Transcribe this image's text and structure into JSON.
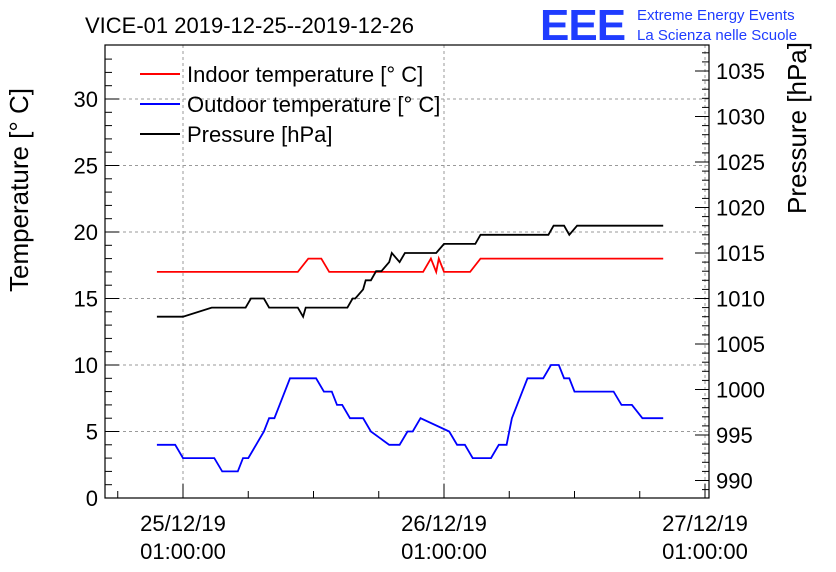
{
  "logo": {
    "mark": "EEE",
    "line1": "Extreme Energy Events",
    "line2": "La Scienza nelle Scuole"
  },
  "chart_data": {
    "type": "line",
    "title": "VICE-01 2019-12-25--2019-12-26",
    "ylabel": "Temperature [° C]",
    "y2label": "Pressure [hPa]",
    "ylim": [
      0,
      34
    ],
    "y2lim": [
      989,
      1037
    ],
    "xlim": [
      -0.26,
      2.0
    ],
    "x_unit": "days after 25/12/19 01:00:00",
    "x_ticks": [
      {
        "x": 0,
        "label": [
          "25/12/19",
          "01:00:00"
        ]
      },
      {
        "x": 1,
        "label": [
          "26/12/19",
          "01:00:00"
        ]
      },
      {
        "x": 2,
        "label": [
          "27/12/19",
          "01:00:00"
        ]
      }
    ],
    "y_ticks": [
      0,
      5,
      10,
      15,
      20,
      25,
      30
    ],
    "y2_ticks": [
      990,
      995,
      1000,
      1005,
      1010,
      1015,
      1020,
      1025,
      1030,
      1035
    ],
    "grid": true,
    "legend_position": "top-left",
    "colors": {
      "indoor": "#ff0000",
      "outdoor": "#0000ff",
      "pressure": "#000000",
      "grid": "#9a9a9a"
    },
    "series": [
      {
        "name": "Indoor temperature [° C]",
        "axis": "left",
        "color": "#ff0000",
        "x": [
          -0.1,
          0.44,
          0.48,
          0.53,
          0.56,
          0.69,
          0.72,
          0.86,
          0.92,
          0.95,
          0.97,
          0.98,
          1.0,
          1.03,
          1.1,
          1.14,
          1.84
        ],
        "y": [
          17,
          17,
          18,
          18,
          17,
          17,
          17,
          17,
          17,
          18,
          17,
          18,
          17,
          17,
          17,
          18,
          18
        ]
      },
      {
        "name": "Outdoor temperature [° C]",
        "axis": "left",
        "color": "#0000ff",
        "x": [
          -0.1,
          -0.03,
          0.0,
          0.12,
          0.15,
          0.21,
          0.23,
          0.25,
          0.28,
          0.31,
          0.33,
          0.35,
          0.37,
          0.41,
          0.44,
          0.51,
          0.54,
          0.57,
          0.59,
          0.61,
          0.64,
          0.69,
          0.72,
          0.79,
          0.83,
          0.86,
          0.88,
          0.91,
          1.02,
          1.05,
          1.08,
          1.11,
          1.13,
          1.18,
          1.21,
          1.24,
          1.26,
          1.28,
          1.3,
          1.32,
          1.35,
          1.38,
          1.41,
          1.44,
          1.46,
          1.48,
          1.5,
          1.57,
          1.6,
          1.65,
          1.68,
          1.72,
          1.76,
          1.84
        ],
        "y": [
          4,
          4,
          3,
          3,
          2,
          2,
          3,
          3,
          4,
          5,
          6,
          6,
          7,
          9,
          9,
          9,
          8,
          8,
          7,
          7,
          6,
          6,
          5,
          4,
          4,
          5,
          5,
          6,
          5,
          4,
          4,
          3,
          3,
          3,
          4,
          4,
          6,
          7,
          8,
          9,
          9,
          9,
          10,
          10,
          9,
          9,
          8,
          8,
          8,
          8,
          7,
          7,
          6,
          6
        ]
      },
      {
        "name": "Pressure [hPa]",
        "axis": "right",
        "color": "#000000",
        "x": [
          -0.1,
          -0.01,
          0.0,
          0.11,
          0.24,
          0.26,
          0.31,
          0.33,
          0.44,
          0.46,
          0.47,
          0.52,
          0.63,
          0.65,
          0.66,
          0.69,
          0.7,
          0.72,
          0.74,
          0.76,
          0.79,
          0.8,
          0.83,
          0.85,
          0.88,
          0.91,
          0.94,
          0.97,
          1.0,
          1.03,
          1.05,
          1.08,
          1.1,
          1.12,
          1.14,
          1.18,
          1.2,
          1.24,
          1.27,
          1.29,
          1.31,
          1.33,
          1.35,
          1.4,
          1.42,
          1.46,
          1.48,
          1.51,
          1.54,
          1.57,
          1.61,
          1.63,
          1.66,
          1.69,
          1.72,
          1.84
        ],
        "y": [
          1008,
          1008,
          1008,
          1009,
          1009,
          1010,
          1010,
          1009,
          1009,
          1008,
          1009,
          1009,
          1009,
          1010,
          1010,
          1011,
          1012,
          1012,
          1013,
          1013,
          1014,
          1015,
          1014,
          1015,
          1015,
          1015,
          1015,
          1015,
          1016,
          1016,
          1016,
          1016,
          1016,
          1016,
          1017,
          1017,
          1017,
          1017,
          1017,
          1017,
          1017,
          1017,
          1017,
          1017,
          1018,
          1018,
          1017,
          1018,
          1018,
          1018,
          1018,
          1018,
          1018,
          1018,
          1018,
          1018
        ]
      }
    ]
  }
}
